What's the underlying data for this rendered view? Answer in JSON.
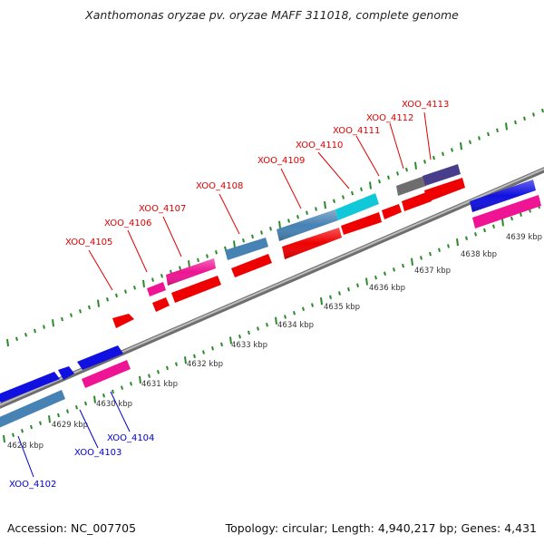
{
  "title": "Xanthomonas oryzae pv. oryzae MAFF 311018, complete genome",
  "footer": {
    "accession": "Accession: NC_007705",
    "summary": "Topology: circular; Length: 4,940,217 bp; Genes: 4,431"
  },
  "colors": {
    "backbone": "#8c8c8c",
    "tick_green": "#2a8a2a",
    "label_red": "#dd0000",
    "label_blue": "#0000cc",
    "leader_red": "#dd0000",
    "leader_blue": "#0000cc"
  },
  "scale": {
    "unit": "kbp",
    "ticks": [
      {
        "kbp": 4628,
        "label": "4628 kbp"
      },
      {
        "kbp": 4629,
        "label": "4629 kbp"
      },
      {
        "kbp": 4630,
        "label": "4630 kbp"
      },
      {
        "kbp": 4631,
        "label": "4631 kbp"
      },
      {
        "kbp": 4632,
        "label": "4632 kbp"
      },
      {
        "kbp": 4633,
        "label": "4633 kbp"
      },
      {
        "kbp": 4634,
        "label": "4634 kbp"
      },
      {
        "kbp": 4635,
        "label": "4635 kbp"
      },
      {
        "kbp": 4636,
        "label": "4636 kbp"
      },
      {
        "kbp": 4637,
        "label": "4637 kbp"
      },
      {
        "kbp": 4638,
        "label": "4638 kbp"
      },
      {
        "kbp": 4639,
        "label": "4639 kbp"
      }
    ]
  },
  "genes": [
    {
      "name": "XOO_4102",
      "strand": "minus",
      "color": "#0a0aee"
    },
    {
      "name": "XOO_4103",
      "strand": "minus",
      "color": "#0a0aee"
    },
    {
      "name": "XOO_4104",
      "strand": "minus",
      "color": "#0a0aee"
    },
    {
      "name": "XOO_4105",
      "strand": "plus",
      "color": "#ee0000"
    },
    {
      "name": "XOO_4106",
      "strand": "plus",
      "color": "#ee0000"
    },
    {
      "name": "XOO_4107",
      "strand": "plus",
      "color": "#ee0000"
    },
    {
      "name": "XOO_4108",
      "strand": "plus",
      "color": "#ee0000"
    },
    {
      "name": "XOO_4109",
      "strand": "plus",
      "color": "#ee0000"
    },
    {
      "name": "XOO_4110",
      "strand": "plus",
      "color": "#ee0000"
    },
    {
      "name": "XOO_4111",
      "strand": "plus",
      "color": "#ee0000"
    },
    {
      "name": "XOO_4112",
      "strand": "plus",
      "color": "#ee0000"
    },
    {
      "name": "XOO_4113",
      "strand": "plus",
      "color": "#ee0000"
    }
  ]
}
